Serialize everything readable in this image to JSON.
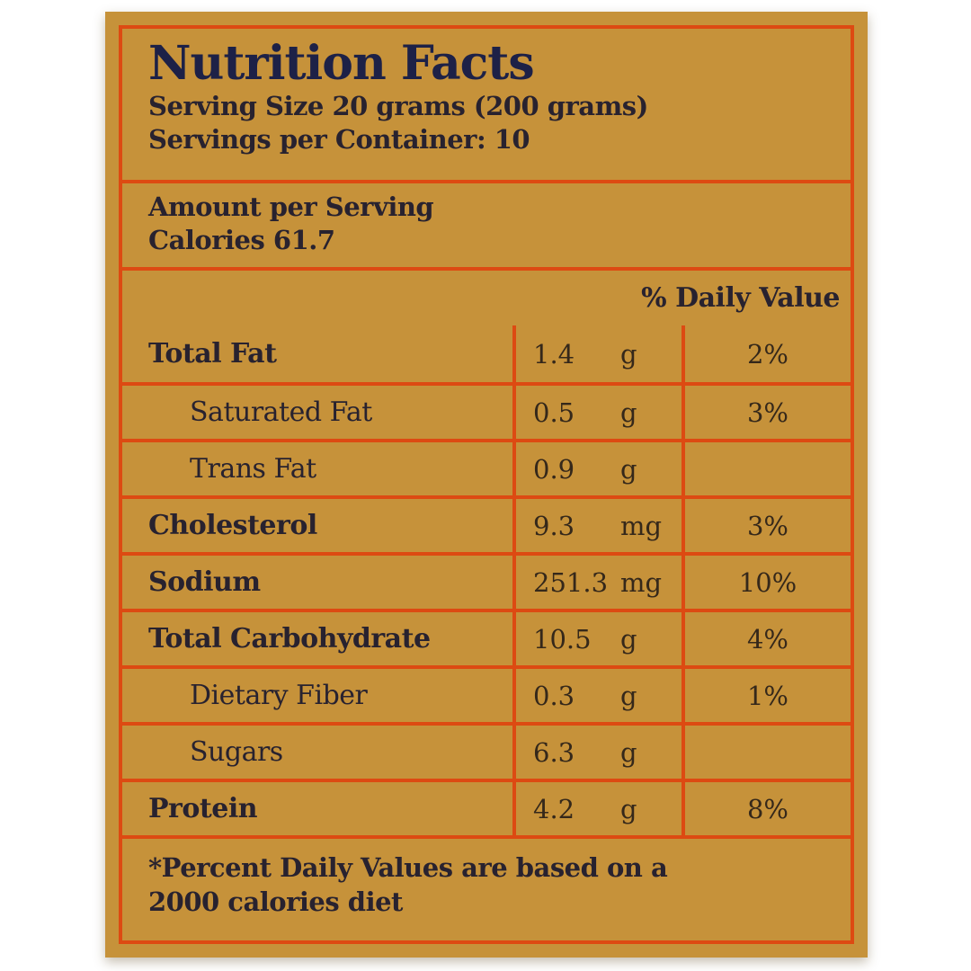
{
  "label": {
    "title": "Nutrition Facts",
    "serving_size": "Serving Size 20 grams (200 grams)",
    "servings_per_container": "Servings per Container: 10",
    "amount_per_serving": "Amount per Serving",
    "calories": "Calories 61.7",
    "daily_value_header": "% Daily Value",
    "rows": [
      {
        "name": "Total Fat",
        "value": "1.4",
        "unit": "g",
        "dv": "2%"
      },
      {
        "name": "Saturated Fat",
        "value": "0.5",
        "unit": "g",
        "dv": "3%"
      },
      {
        "name": "Trans Fat",
        "value": "0.9",
        "unit": "g",
        "dv": ""
      },
      {
        "name": "Cholesterol",
        "value": "9.3",
        "unit": "mg",
        "dv": "3%"
      },
      {
        "name": "Sodium",
        "value": "251.3",
        "unit": "mg",
        "dv": "10%"
      },
      {
        "name": "Total Carbohydrate",
        "value": "10.5",
        "unit": "g",
        "dv": "4%"
      },
      {
        "name": "Dietary Fiber",
        "value": "0.3",
        "unit": "g",
        "dv": "1%"
      },
      {
        "name": "Sugars",
        "value": "6.3",
        "unit": "g",
        "dv": ""
      },
      {
        "name": "Protein",
        "value": "4.2",
        "unit": "g",
        "dv": "8%"
      }
    ],
    "footnote_line1": "*Percent Daily Values are based on a",
    "footnote_line2": "2000 calories diet",
    "colors": {
      "background": "#c6923a",
      "grid": "#dd4a12",
      "title_text": "#1d2147",
      "label_text": "#28222f",
      "value_text": "#35281a",
      "page_background": "#ffffff"
    }
  }
}
